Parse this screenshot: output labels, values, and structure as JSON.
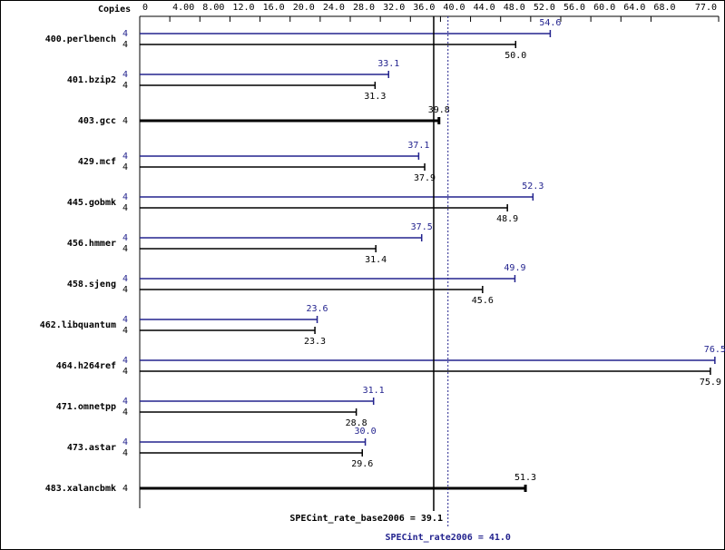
{
  "chart_data": {
    "type": "spec_bar",
    "copies_label": "Copies",
    "categories": [
      "400.perlbench",
      "401.bzip2",
      "403.gcc",
      "429.mcf",
      "445.gobmk",
      "456.hmmer",
      "458.sjeng",
      "462.libquantum",
      "464.h264ref",
      "471.omnetpp",
      "473.astar",
      "483.xalancbmk"
    ],
    "series": [
      {
        "color": "#23238e",
        "copies": [
          4,
          4,
          null,
          4,
          4,
          4,
          4,
          4,
          4,
          4,
          4,
          null
        ],
        "values": [
          54.6,
          33.1,
          null,
          37.1,
          52.3,
          37.5,
          49.9,
          23.6,
          76.5,
          31.1,
          30.0,
          null
        ],
        "value_labels": [
          "54.6",
          "33.1",
          null,
          "37.1",
          "52.3",
          "37.5",
          "49.9",
          "23.6",
          "76.5",
          "31.1",
          "30.0",
          null
        ]
      },
      {
        "color": "#000000",
        "copies": [
          4,
          4,
          4,
          4,
          4,
          4,
          4,
          4,
          4,
          4,
          4,
          4
        ],
        "values": [
          50.0,
          31.3,
          39.8,
          37.9,
          48.9,
          31.4,
          45.6,
          23.3,
          75.9,
          28.8,
          29.6,
          51.3
        ],
        "value_labels": [
          "50.0",
          "31.3",
          "39.8",
          "37.9",
          "48.9",
          "31.4",
          "45.6",
          "23.3",
          "75.9",
          "28.8",
          "29.6",
          "51.3"
        ]
      }
    ],
    "xlim": [
      0,
      77
    ],
    "xticks": [
      0,
      {
        "value": 4,
        "label": "4.00"
      },
      {
        "value": 8,
        "label": "8.00"
      },
      {
        "value": 12,
        "label": "12.0"
      },
      {
        "value": 16,
        "label": "16.0"
      },
      {
        "value": 20,
        "label": "20.0"
      },
      {
        "value": 24,
        "label": "24.0"
      },
      {
        "value": 28,
        "label": "28.0"
      },
      {
        "value": 32,
        "label": "32.0"
      },
      {
        "value": 36,
        "label": "36.0"
      },
      {
        "value": 40,
        "label": "40.0"
      },
      {
        "value": 44,
        "label": "44.0"
      },
      {
        "value": 48,
        "label": "48.0"
      },
      {
        "value": 52,
        "label": "52.0"
      },
      {
        "value": 56,
        "label": "56.0"
      },
      {
        "value": 60,
        "label": "60.0"
      },
      {
        "value": 64,
        "label": "64.0"
      },
      {
        "value": 68,
        "label": "68.0"
      },
      {
        "value": 77,
        "label": "77.0"
      }
    ],
    "reference_lines": [
      {
        "text": "SPECint_rate_base2006 = 39.1",
        "value": 39.1,
        "color": "#000000",
        "style": "solid"
      },
      {
        "text": "SPECint_rate2006 = 41.0",
        "value": 41.0,
        "color": "#23238e",
        "style": "dotted"
      }
    ]
  }
}
